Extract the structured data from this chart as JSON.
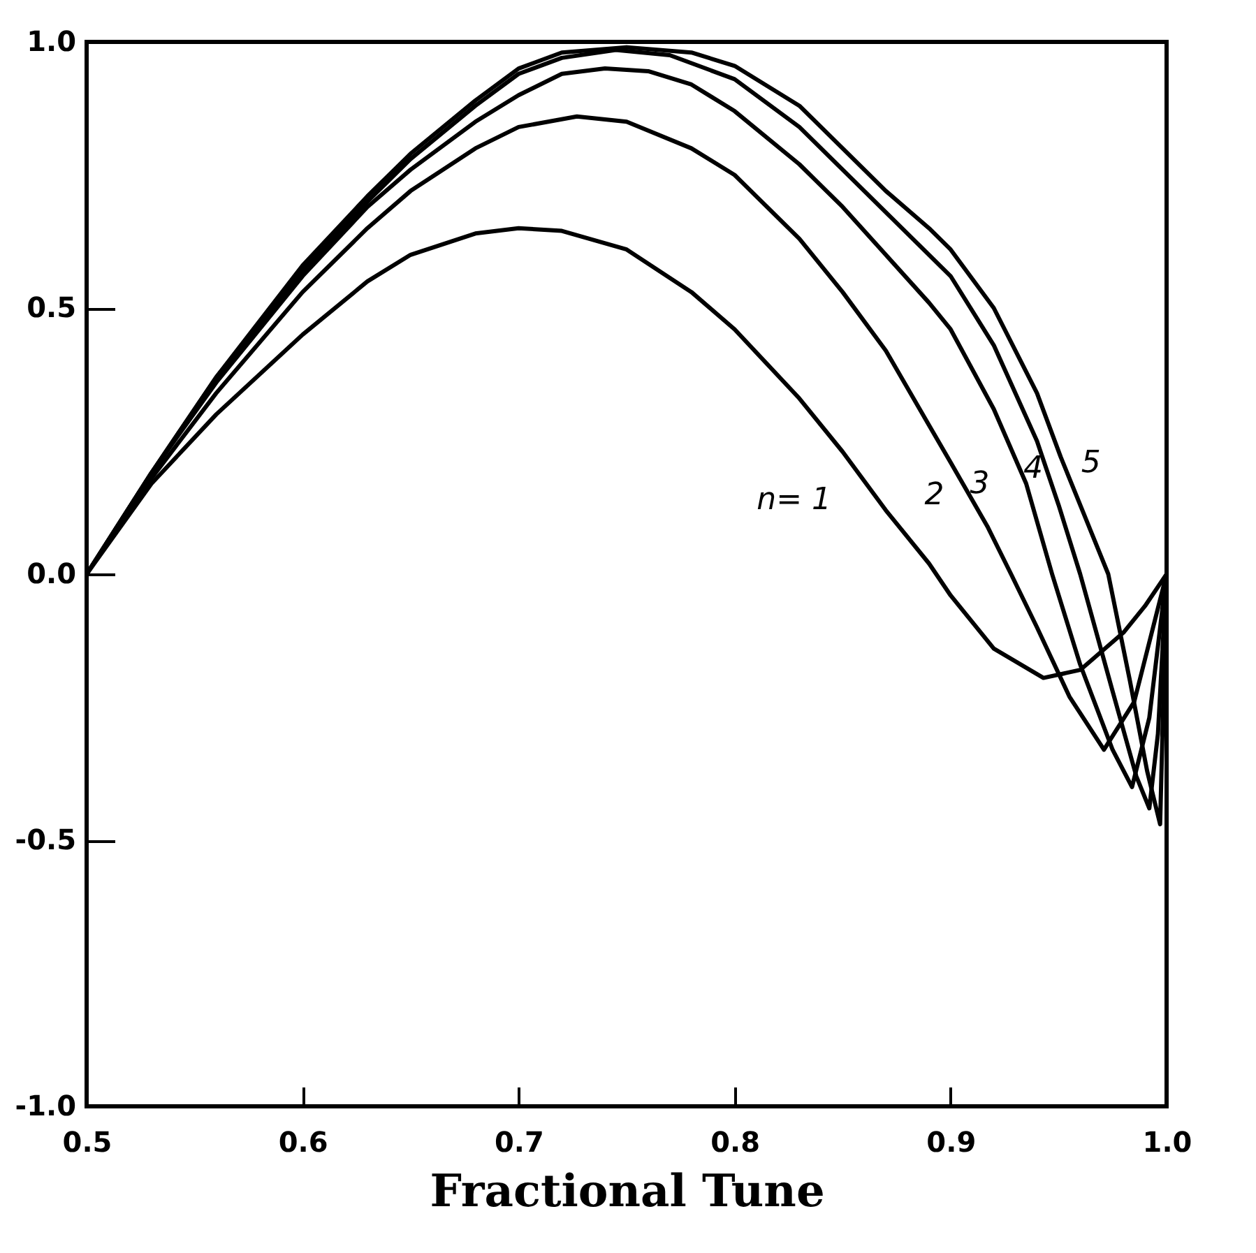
{
  "chart_data": {
    "type": "line",
    "xlabel": "Fractional Tune",
    "xlim": [
      0.5,
      1.0
    ],
    "ylim": [
      -1.0,
      1.0
    ],
    "xticks": [
      {
        "value": 0.5,
        "label": "0.5"
      },
      {
        "value": 0.6,
        "label": "0.6"
      },
      {
        "value": 0.7,
        "label": "0.7"
      },
      {
        "value": 0.8,
        "label": "0.8"
      },
      {
        "value": 0.9,
        "label": "0.9"
      },
      {
        "value": 1.0,
        "label": "1.0"
      }
    ],
    "yticks": [
      {
        "value": -1.0,
        "label": "-1.0"
      },
      {
        "value": -0.5,
        "label": "-0.5"
      },
      {
        "value": 0,
        "label": "0.0"
      },
      {
        "value": 0.5,
        "label": "0.5"
      },
      {
        "value": 1.0,
        "label": "1.0"
      }
    ],
    "grid": false,
    "marker": "none",
    "line_style": "solid",
    "series": [
      {
        "color": "#000000",
        "x": [
          0.5,
          0.53,
          0.56,
          0.6,
          0.63,
          0.65,
          0.68,
          0.7,
          0.72,
          0.75,
          0.78,
          0.8,
          0.83,
          0.85,
          0.87,
          0.89,
          0.9,
          0.92,
          0.943,
          0.96,
          0.98,
          0.99,
          1.0
        ],
        "values": [
          0,
          0.17,
          0.3,
          0.45,
          0.55,
          0.6,
          0.64,
          0.65,
          0.645,
          0.61,
          0.53,
          0.46,
          0.33,
          0.23,
          0.12,
          0.02,
          -0.04,
          -0.14,
          -0.195,
          -0.18,
          -0.11,
          -0.06,
          0
        ]
      },
      {
        "color": "#000000",
        "x": [
          0.5,
          0.53,
          0.56,
          0.6,
          0.63,
          0.65,
          0.68,
          0.7,
          0.727,
          0.75,
          0.78,
          0.8,
          0.83,
          0.85,
          0.87,
          0.89,
          0.9,
          0.917,
          0.928,
          0.94,
          0.955,
          0.971,
          0.985,
          1.0
        ],
        "values": [
          0,
          0.18,
          0.34,
          0.53,
          0.65,
          0.72,
          0.8,
          0.84,
          0.86,
          0.85,
          0.8,
          0.75,
          0.63,
          0.53,
          0.42,
          0.28,
          0.21,
          0.09,
          0,
          -0.1,
          -0.23,
          -0.33,
          -0.24,
          0
        ]
      },
      {
        "color": "#000000",
        "x": [
          0.5,
          0.53,
          0.56,
          0.6,
          0.63,
          0.65,
          0.68,
          0.7,
          0.72,
          0.74,
          0.76,
          0.78,
          0.8,
          0.83,
          0.85,
          0.87,
          0.89,
          0.9,
          0.92,
          0.935,
          0.947,
          0.96,
          0.975,
          0.984,
          0.992,
          1.0
        ],
        "values": [
          0,
          0.19,
          0.36,
          0.56,
          0.69,
          0.76,
          0.85,
          0.9,
          0.94,
          0.95,
          0.945,
          0.92,
          0.87,
          0.77,
          0.69,
          0.6,
          0.51,
          0.46,
          0.31,
          0.17,
          0,
          -0.17,
          -0.33,
          -0.4,
          -0.27,
          0
        ]
      },
      {
        "color": "#000000",
        "x": [
          0.5,
          0.53,
          0.56,
          0.6,
          0.63,
          0.65,
          0.68,
          0.7,
          0.72,
          0.745,
          0.77,
          0.8,
          0.83,
          0.85,
          0.87,
          0.89,
          0.9,
          0.92,
          0.94,
          0.95,
          0.96,
          0.975,
          0.986,
          0.992,
          0.996,
          1.0
        ],
        "values": [
          0,
          0.19,
          0.37,
          0.57,
          0.7,
          0.78,
          0.88,
          0.94,
          0.97,
          0.985,
          0.975,
          0.93,
          0.84,
          0.76,
          0.68,
          0.6,
          0.56,
          0.43,
          0.25,
          0.13,
          0,
          -0.22,
          -0.38,
          -0.44,
          -0.3,
          0
        ]
      },
      {
        "color": "#000000",
        "x": [
          0.5,
          0.53,
          0.56,
          0.6,
          0.63,
          0.65,
          0.68,
          0.7,
          0.72,
          0.75,
          0.78,
          0.8,
          0.83,
          0.85,
          0.87,
          0.89,
          0.9,
          0.92,
          0.94,
          0.951,
          0.962,
          0.973,
          0.983,
          0.991,
          0.997,
          1.0
        ],
        "values": [
          0,
          0.19,
          0.37,
          0.58,
          0.71,
          0.79,
          0.89,
          0.95,
          0.98,
          0.99,
          0.98,
          0.955,
          0.88,
          0.8,
          0.72,
          0.65,
          0.61,
          0.5,
          0.34,
          0.22,
          0.11,
          0,
          -0.2,
          -0.37,
          -0.47,
          0
        ]
      }
    ],
    "annotations": [
      "n= 1",
      "2",
      "3",
      "4",
      "5"
    ]
  }
}
